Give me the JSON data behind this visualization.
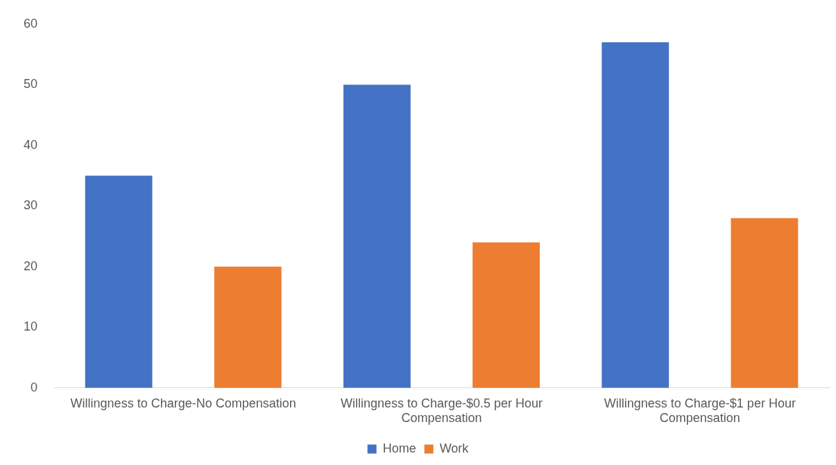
{
  "chart_data": {
    "type": "bar",
    "categories": [
      "Willingness to Charge-No Compensation",
      "Willingness to Charge-$0.5 per Hour Compensation",
      "Willingness to Charge-$1 per Hour Compensation"
    ],
    "series": [
      {
        "name": "Home",
        "color": "#4472c4",
        "values": [
          35,
          50,
          57
        ]
      },
      {
        "name": "Work",
        "color": "#ed7d31",
        "values": [
          20,
          24,
          28
        ]
      }
    ],
    "ylim": [
      0,
      60
    ],
    "yticks": [
      0,
      10,
      20,
      30,
      40,
      50,
      60
    ],
    "grid": false,
    "legend": "bottom"
  }
}
